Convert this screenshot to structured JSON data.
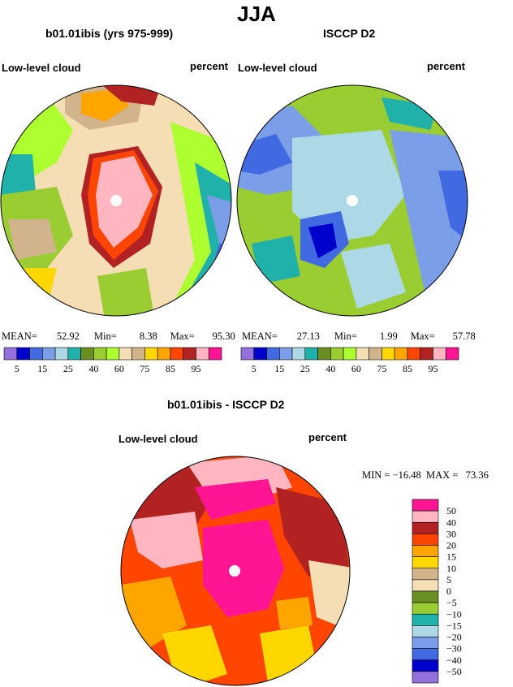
{
  "main_title": "JJA",
  "panels": {
    "left": {
      "title": "b01.01ibis (yrs 975-999)",
      "label_left": "Low-level cloud",
      "label_right": "percent",
      "stats": {
        "mean": "52.92",
        "min": "8.38",
        "max": "95.30"
      }
    },
    "right": {
      "title": "ISCCP D2",
      "label_left": "Low-level cloud",
      "label_right": "percent",
      "stats": {
        "mean": "27.13",
        "min": "1.99",
        "max": "57.78"
      }
    },
    "bottom": {
      "title": "b01.01ibis - ISCCP D2",
      "label_left": "Low-level cloud",
      "label_right": "percent",
      "minmax": "MIN = −16.48  MAX =   73.36"
    }
  },
  "stat_labels": {
    "mean": "MEAN=",
    "min": "Min=",
    "max": "Max="
  },
  "colors": {
    "abs_scale": [
      "#9370db",
      "#0000cd",
      "#4169e1",
      "#7b9ee8",
      "#add8e6",
      "#20b2aa",
      "#6b8e23",
      "#9acd32",
      "#adff2f",
      "#f5deb3",
      "#d2b48c",
      "#ffd700",
      "#ffa500",
      "#ff4500",
      "#b22222",
      "#ffb6c1",
      "#ff1493"
    ],
    "diff_scale": [
      "#ff1493",
      "#ffb6c1",
      "#b22222",
      "#ff4500",
      "#ffa500",
      "#ffd700",
      "#d2b48c",
      "#f5deb3",
      "#6b8e23",
      "#9acd32",
      "#20b2aa",
      "#add8e6",
      "#7b9ee8",
      "#4169e1",
      "#0000cd",
      "#9370db"
    ]
  },
  "chart_data": [
    {
      "type": "heatmap",
      "title": "b01.01ibis (yrs 975-999)",
      "subtitle": "Low-level cloud",
      "units": "percent",
      "projection": "polar stereographic (north pole)",
      "stats": {
        "mean": 52.92,
        "min": 8.38,
        "max": 95.3
      },
      "colorbar": {
        "orientation": "horizontal",
        "levels": [
          5,
          10,
          15,
          20,
          25,
          30,
          40,
          50,
          60,
          70,
          75,
          80,
          85,
          90,
          95
        ],
        "tick_labels": [
          "5",
          "15",
          "25",
          "40",
          "60",
          "75",
          "85",
          "95"
        ]
      }
    },
    {
      "type": "heatmap",
      "title": "ISCCP D2",
      "subtitle": "Low-level cloud",
      "units": "percent",
      "projection": "polar stereographic (north pole)",
      "stats": {
        "mean": 27.13,
        "min": 1.99,
        "max": 57.78
      },
      "colorbar": {
        "orientation": "horizontal",
        "levels": [
          5,
          10,
          15,
          20,
          25,
          30,
          40,
          50,
          60,
          70,
          75,
          80,
          85,
          90,
          95
        ],
        "tick_labels": [
          "5",
          "15",
          "25",
          "40",
          "60",
          "75",
          "85",
          "95"
        ]
      }
    },
    {
      "type": "heatmap",
      "title": "b01.01ibis - ISCCP D2",
      "subtitle": "Low-level cloud",
      "units": "percent",
      "projection": "polar stereographic (north pole)",
      "stats": {
        "min": -16.48,
        "max": 73.36
      },
      "colorbar": {
        "orientation": "vertical",
        "levels": [
          50,
          40,
          30,
          20,
          15,
          10,
          5,
          0,
          -5,
          -10,
          -15,
          -20,
          -30,
          -40,
          -50
        ],
        "tick_labels": [
          "50",
          "40",
          "30",
          "20",
          "15",
          "10",
          "5",
          "0",
          "−5",
          "−10",
          "−15",
          "−20",
          "−30",
          "−40",
          "−50"
        ]
      }
    }
  ]
}
